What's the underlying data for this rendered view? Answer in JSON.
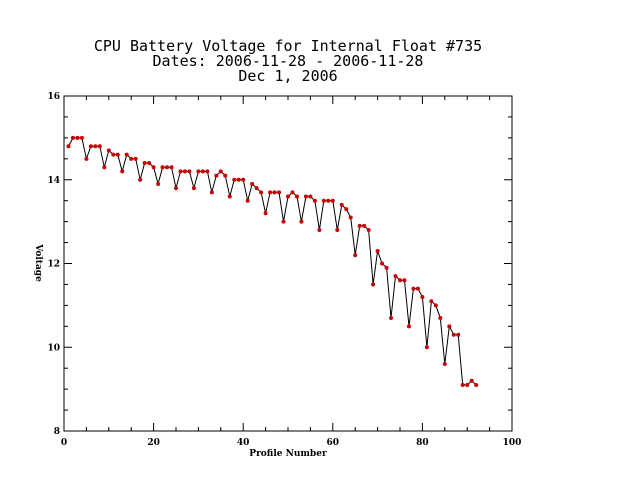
{
  "chart_data": {
    "type": "line",
    "title_lines": [
      "CPU Battery Voltage for Internal Float #735",
      "Dates:  2006-11-28 -  2006-11-28",
      "Dec  1, 2006"
    ],
    "xlabel": "Profile Number",
    "ylabel": "Voltage",
    "xlim": [
      0,
      100
    ],
    "ylim": [
      8,
      16
    ],
    "xticks": [
      0,
      20,
      40,
      60,
      80,
      100
    ],
    "yticks": [
      8,
      10,
      12,
      14,
      16
    ],
    "line_color": "#000000",
    "marker_color": "#cc0000",
    "x": [
      1,
      2,
      3,
      4,
      5,
      6,
      7,
      8,
      9,
      10,
      11,
      12,
      13,
      14,
      15,
      16,
      17,
      18,
      19,
      20,
      21,
      22,
      23,
      24,
      25,
      26,
      27,
      28,
      29,
      30,
      31,
      32,
      33,
      34,
      35,
      36,
      37,
      38,
      39,
      40,
      41,
      42,
      43,
      44,
      45,
      46,
      47,
      48,
      49,
      50,
      51,
      52,
      53,
      54,
      55,
      56,
      57,
      58,
      59,
      60,
      61,
      62,
      63,
      64,
      65,
      66,
      67,
      68,
      69,
      70,
      71,
      72,
      73,
      74,
      75,
      76,
      77,
      78,
      79,
      80,
      81,
      82,
      83,
      84,
      85,
      86,
      87,
      88,
      89,
      90,
      91,
      92
    ],
    "y": [
      14.8,
      15.0,
      15.0,
      15.0,
      14.5,
      14.8,
      14.8,
      14.8,
      14.3,
      14.7,
      14.6,
      14.6,
      14.2,
      14.6,
      14.5,
      14.5,
      14.0,
      14.4,
      14.4,
      14.3,
      13.9,
      14.3,
      14.3,
      14.3,
      13.8,
      14.2,
      14.2,
      14.2,
      13.8,
      14.2,
      14.2,
      14.2,
      13.7,
      14.1,
      14.2,
      14.1,
      13.6,
      14.0,
      14.0,
      14.0,
      13.5,
      13.9,
      13.8,
      13.7,
      13.2,
      13.7,
      13.7,
      13.7,
      13.0,
      13.6,
      13.7,
      13.6,
      13.0,
      13.6,
      13.6,
      13.5,
      12.8,
      13.5,
      13.5,
      13.5,
      12.8,
      13.4,
      13.3,
      13.1,
      12.2,
      12.9,
      12.9,
      12.8,
      11.5,
      12.3,
      12.0,
      11.9,
      10.7,
      11.7,
      11.6,
      11.6,
      10.5,
      11.4,
      11.4,
      11.2,
      10.0,
      11.1,
      11.0,
      10.7,
      9.6,
      10.5,
      10.3,
      10.3,
      9.1,
      9.1,
      9.2,
      9.1
    ]
  }
}
